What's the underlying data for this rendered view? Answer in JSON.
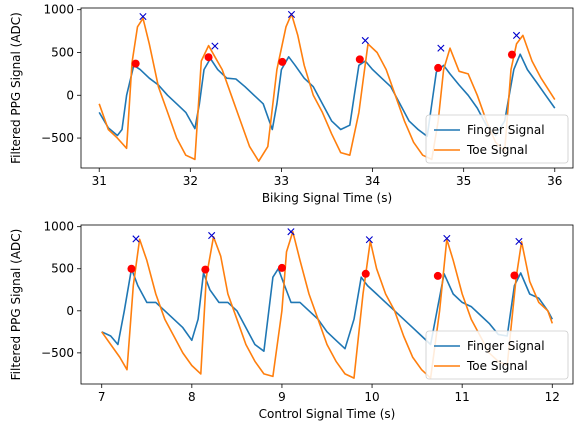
{
  "chart_data": [
    {
      "type": "line",
      "xlabel": "Biking Signal Time (s)",
      "ylabel": "Filtered PPG Signal (ADC)",
      "xlim": [
        30.8,
        36.2
      ],
      "ylim": [
        -850,
        1020
      ],
      "xticks": [
        31,
        32,
        33,
        34,
        35,
        36
      ],
      "yticks": [
        -500,
        0,
        500,
        1000
      ],
      "legend": "lower-right",
      "series": [
        {
          "name": "Finger Signal",
          "color": "#1f77b4",
          "x": [
            31.0,
            31.1,
            31.2,
            31.25,
            31.3,
            31.38,
            31.45,
            31.55,
            31.65,
            31.75,
            31.85,
            31.95,
            32.05,
            32.1,
            32.15,
            32.22,
            32.3,
            32.4,
            32.5,
            32.6,
            32.7,
            32.8,
            32.9,
            32.95,
            33.0,
            33.08,
            33.15,
            33.25,
            33.35,
            33.45,
            33.55,
            33.65,
            33.75,
            33.8,
            33.85,
            33.92,
            34.0,
            34.1,
            34.2,
            34.3,
            34.4,
            34.5,
            34.6,
            34.65,
            34.7,
            34.78,
            34.85,
            34.95,
            35.05,
            35.15,
            35.25,
            35.35,
            35.45,
            35.5,
            35.55,
            35.62,
            35.7,
            35.8,
            35.9,
            36.0
          ],
          "y": [
            -200,
            -380,
            -470,
            -400,
            0,
            350,
            300,
            200,
            120,
            0,
            -100,
            -200,
            -390,
            -100,
            300,
            430,
            300,
            200,
            190,
            100,
            0,
            -100,
            -400,
            -100,
            300,
            450,
            350,
            200,
            100,
            -100,
            -300,
            -400,
            -350,
            0,
            350,
            400,
            300,
            200,
            100,
            -100,
            -300,
            -400,
            -480,
            -100,
            270,
            350,
            250,
            120,
            0,
            -150,
            -350,
            -470,
            -300,
            0,
            300,
            480,
            300,
            150,
            0,
            -150
          ]
        },
        {
          "name": "Toe Signal",
          "color": "#ff7f0e",
          "x": [
            31.0,
            31.1,
            31.2,
            31.3,
            31.36,
            31.42,
            31.48,
            31.55,
            31.65,
            31.75,
            31.85,
            31.95,
            32.05,
            32.12,
            32.2,
            32.27,
            32.35,
            32.45,
            32.55,
            32.65,
            32.75,
            32.85,
            32.95,
            33.05,
            33.11,
            33.18,
            33.25,
            33.35,
            33.45,
            33.55,
            33.65,
            33.75,
            33.85,
            33.9,
            33.95,
            34.05,
            34.15,
            34.25,
            34.35,
            34.45,
            34.55,
            34.65,
            34.72,
            34.78,
            34.85,
            34.95,
            35.05,
            35.15,
            35.25,
            35.35,
            35.45,
            35.52,
            35.58,
            35.65,
            35.75,
            35.85,
            36.0
          ],
          "y": [
            -100,
            -400,
            -500,
            -620,
            380,
            800,
            900,
            600,
            100,
            -200,
            -500,
            -700,
            -750,
            400,
            580,
            450,
            300,
            0,
            -300,
            -600,
            -770,
            -600,
            300,
            800,
            950,
            700,
            350,
            0,
            -200,
            -450,
            -670,
            -700,
            -200,
            200,
            600,
            500,
            300,
            0,
            -300,
            -550,
            -700,
            -750,
            -300,
            300,
            550,
            280,
            250,
            0,
            -300,
            -550,
            -650,
            300,
            600,
            700,
            400,
            200,
            -50
          ]
        }
      ],
      "peaks": {
        "marker": "x",
        "color": "#0000cc",
        "x": [
          31.48,
          32.27,
          33.11,
          33.92,
          34.75,
          35.58
        ],
        "y": [
          920,
          575,
          945,
          640,
          550,
          700
        ]
      },
      "onsets": {
        "marker": "o",
        "color": "#ff0000",
        "x": [
          31.4,
          32.2,
          33.01,
          33.86,
          34.72,
          35.53
        ],
        "y": [
          370,
          445,
          390,
          420,
          320,
          475
        ]
      }
    },
    {
      "type": "line",
      "xlabel": "Control Signal Time (s)",
      "ylabel": "Filtered PPG Signal (ADC)",
      "xlim": [
        6.77,
        12.23
      ],
      "ylim": [
        -870,
        1020
      ],
      "xticks": [
        7,
        8,
        9,
        10,
        11,
        12
      ],
      "yticks": [
        -500,
        0,
        500,
        1000
      ],
      "legend": "lower-right",
      "series": [
        {
          "name": "Finger Signal",
          "color": "#1f77b4",
          "x": [
            7.0,
            7.1,
            7.18,
            7.25,
            7.33,
            7.4,
            7.5,
            7.6,
            7.7,
            7.8,
            7.9,
            8.0,
            8.07,
            8.13,
            8.2,
            8.3,
            8.4,
            8.5,
            8.6,
            8.7,
            8.8,
            8.9,
            8.96,
            9.03,
            9.1,
            9.2,
            9.3,
            9.4,
            9.5,
            9.6,
            9.7,
            9.8,
            9.88,
            9.95,
            10.05,
            10.15,
            10.25,
            10.35,
            10.45,
            10.55,
            10.65,
            10.73,
            10.8,
            10.9,
            11.0,
            11.1,
            11.2,
            11.3,
            11.4,
            11.5,
            11.58,
            11.65,
            11.75,
            11.85,
            11.95,
            12.0
          ],
          "y": [
            -250,
            -300,
            -400,
            0,
            500,
            300,
            100,
            100,
            0,
            -100,
            -200,
            -350,
            -100,
            450,
            250,
            100,
            100,
            0,
            -200,
            -400,
            -480,
            400,
            500,
            300,
            100,
            100,
            0,
            -100,
            -250,
            -350,
            -450,
            -100,
            400,
            300,
            200,
            100,
            0,
            -100,
            -200,
            -300,
            -400,
            50,
            440,
            200,
            100,
            50,
            -50,
            -150,
            -280,
            -300,
            300,
            450,
            200,
            150,
            0,
            -100
          ]
        },
        {
          "name": "Toe Signal",
          "color": "#ff7f0e",
          "x": [
            7.0,
            7.1,
            7.2,
            7.28,
            7.35,
            7.42,
            7.5,
            7.6,
            7.7,
            7.8,
            7.9,
            8.0,
            8.1,
            8.16,
            8.24,
            8.32,
            8.4,
            8.5,
            8.6,
            8.7,
            8.8,
            8.9,
            9.0,
            9.05,
            9.12,
            9.2,
            9.3,
            9.4,
            9.5,
            9.6,
            9.7,
            9.8,
            9.9,
            9.98,
            10.05,
            10.15,
            10.25,
            10.35,
            10.45,
            10.55,
            10.65,
            10.75,
            10.83,
            10.9,
            11.0,
            11.1,
            11.2,
            11.3,
            11.4,
            11.5,
            11.6,
            11.66,
            11.75,
            11.85,
            11.95,
            12.0
          ],
          "y": [
            -250,
            -400,
            -550,
            -700,
            300,
            850,
            600,
            200,
            -100,
            -300,
            -500,
            -650,
            -750,
            400,
            880,
            650,
            200,
            -100,
            -400,
            -600,
            -750,
            -780,
            0,
            700,
            940,
            600,
            200,
            -100,
            -400,
            -600,
            -750,
            -800,
            200,
            830,
            500,
            200,
            0,
            -300,
            -550,
            -700,
            -800,
            0,
            850,
            600,
            200,
            -100,
            -300,
            -500,
            -600,
            -650,
            400,
            820,
            350,
            100,
            0,
            -150
          ]
        }
      ],
      "peaks": {
        "marker": "x",
        "color": "#0000cc",
        "x": [
          7.38,
          8.22,
          9.1,
          9.97,
          10.83,
          11.63
        ],
        "y": [
          855,
          895,
          940,
          845,
          860,
          825
        ]
      },
      "onsets": {
        "marker": "o",
        "color": "#ff0000",
        "x": [
          7.33,
          8.15,
          9.0,
          9.93,
          10.73,
          11.58
        ],
        "y": [
          500,
          490,
          510,
          440,
          415,
          420
        ]
      }
    }
  ]
}
